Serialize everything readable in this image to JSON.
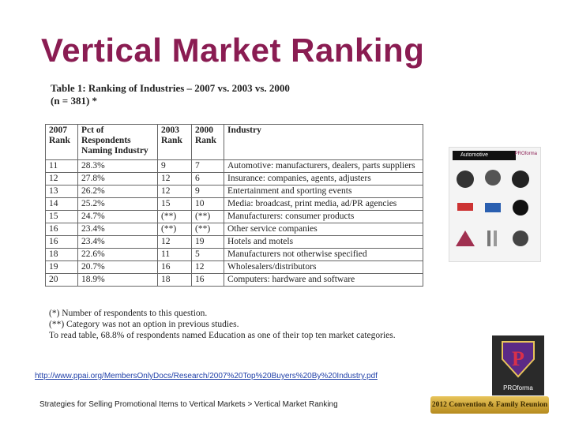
{
  "title": "Vertical Market Ranking",
  "table": {
    "caption": "Table 1: Ranking of Industries – 2007 vs. 2003 vs. 2000",
    "subcaption": "(n = 381) *",
    "header": [
      "2007 Rank",
      "Pct of Respondents Naming Industry",
      "2003 Rank",
      "2000 Rank",
      "Industry"
    ],
    "rows": [
      [
        "11",
        "28.3%",
        "9",
        "7",
        "Automotive: manufacturers, dealers, parts suppliers"
      ],
      [
        "12",
        "27.8%",
        "12",
        "6",
        "Insurance: companies, agents, adjusters"
      ],
      [
        "13",
        "26.2%",
        "12",
        "9",
        "Entertainment and sporting events"
      ],
      [
        "14",
        "25.2%",
        "15",
        "10",
        "Media: broadcast, print media, ad/PR agencies"
      ],
      [
        "15",
        "24.7%",
        "(**)",
        "(**)",
        "Manufacturers: consumer products"
      ],
      [
        "16",
        "23.4%",
        "(**)",
        "(**)",
        "Other service companies"
      ],
      [
        "16",
        "23.4%",
        "12",
        "19",
        "Hotels and motels"
      ],
      [
        "18",
        "22.6%",
        "11",
        "5",
        "Manufacturers not otherwise specified"
      ],
      [
        "19",
        "20.7%",
        "16",
        "12",
        "Wholesalers/distributors"
      ],
      [
        "20",
        "18.9%",
        "18",
        "16",
        "Computers: hardware and software"
      ]
    ],
    "notes": [
      "(*) Number of respondents to this question.",
      "(**) Category was not an option in previous studies.",
      "To read table, 68.8% of respondents named Education as one of their top ten market categories."
    ]
  },
  "source_url": "http://www.ppai.org/MembersOnlyDocs/Research/2007%20Top%20Buyers%20By%20Industry.pdf",
  "footer": "Strategies for Selling Promotional Items to Vertical Markets > Vertical Market Ranking",
  "catalog": {
    "heading": "Automotive",
    "brand": "PROforma"
  },
  "logo": {
    "brand": "PROforma"
  },
  "badge": "2012 Convention & Family Reunion"
}
